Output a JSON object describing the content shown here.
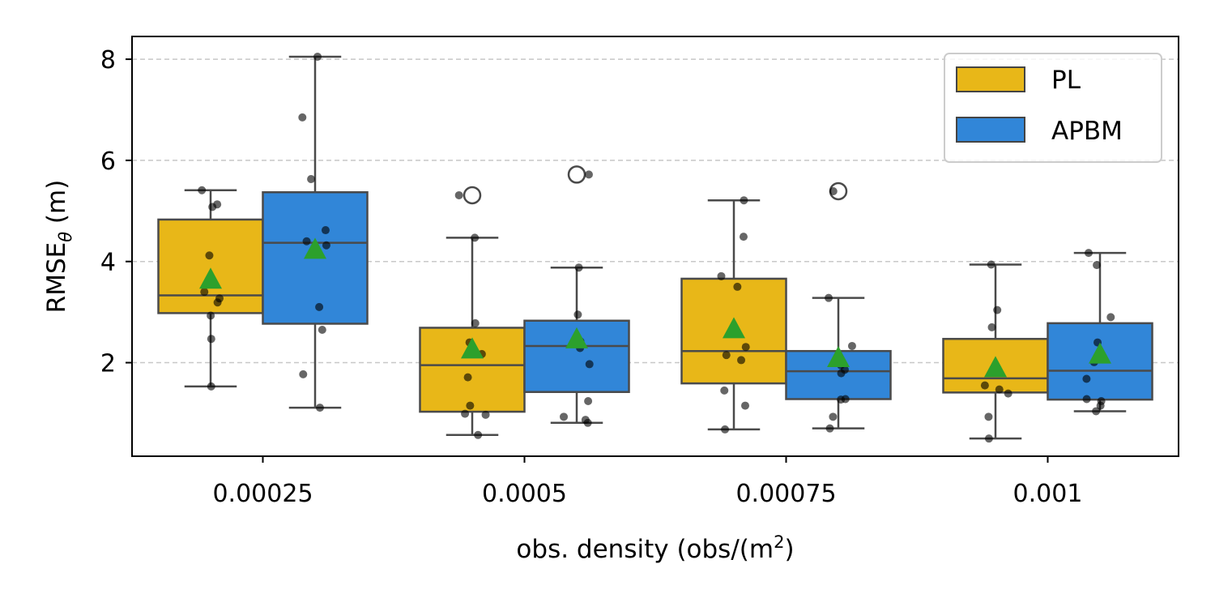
{
  "chart_data": {
    "type": "box",
    "categories": [
      "0.00025",
      "0.0005",
      "0.00075",
      "0.001"
    ],
    "xlabel": {
      "text": "obs. density (obs/(m",
      "sup": "2",
      "tail": ")"
    },
    "ylabel": {
      "text": "RMSE",
      "sub": "θ",
      "tail": " (m)"
    },
    "ylim": [
      0.15,
      8.45
    ],
    "yticks": [
      2,
      4,
      6,
      8
    ],
    "grid": "y-dashed",
    "legend_position": "top-right",
    "series": [
      {
        "name": "PL",
        "color": "#e8b718",
        "boxes": [
          {
            "whislo": 1.53,
            "q1": 2.98,
            "med": 3.33,
            "q3": 4.83,
            "whishi": 5.41,
            "mean": 3.63,
            "fliers": []
          },
          {
            "whislo": 0.57,
            "q1": 1.03,
            "med": 1.95,
            "q3": 2.69,
            "whishi": 4.47,
            "mean": 2.25,
            "fliers": [
              5.31
            ]
          },
          {
            "whislo": 0.68,
            "q1": 1.59,
            "med": 2.23,
            "q3": 3.66,
            "whishi": 5.21,
            "mean": 2.65,
            "fliers": []
          },
          {
            "whislo": 0.5,
            "q1": 1.41,
            "med": 1.69,
            "q3": 2.47,
            "whishi": 3.94,
            "mean": 1.88,
            "fliers": []
          }
        ],
        "points": [
          [
            5.41,
            5.13,
            5.08,
            4.12,
            3.4,
            3.27,
            3.19,
            2.93,
            2.47,
            1.53
          ],
          [
            5.31,
            4.47,
            2.78,
            2.4,
            2.17,
            1.71,
            1.15,
            0.99,
            0.97,
            0.57
          ],
          [
            5.21,
            4.49,
            3.71,
            3.5,
            2.31,
            2.15,
            2.05,
            1.45,
            1.15,
            0.68
          ],
          [
            3.94,
            3.04,
            2.7,
            1.82,
            1.8,
            1.55,
            1.47,
            1.39,
            0.93,
            0.5
          ]
        ]
      },
      {
        "name": "APBM",
        "color": "#3186d8",
        "boxes": [
          {
            "whislo": 1.11,
            "q1": 2.77,
            "med": 4.37,
            "q3": 5.37,
            "whishi": 8.05,
            "mean": 4.22,
            "fliers": []
          },
          {
            "whislo": 0.81,
            "q1": 1.42,
            "med": 2.33,
            "q3": 2.83,
            "whishi": 3.88,
            "mean": 2.45,
            "fliers": [
              5.72
            ]
          },
          {
            "whislo": 0.7,
            "q1": 1.28,
            "med": 1.83,
            "q3": 2.23,
            "whishi": 3.28,
            "mean": 2.08,
            "fliers": [
              5.39
            ]
          },
          {
            "whislo": 1.04,
            "q1": 1.27,
            "med": 1.84,
            "q3": 2.78,
            "whishi": 4.17,
            "mean": 2.15,
            "fliers": []
          }
        ],
        "points": [
          [
            8.05,
            6.85,
            5.63,
            4.62,
            4.4,
            4.32,
            3.1,
            2.65,
            1.77,
            1.11
          ],
          [
            5.72,
            3.88,
            2.95,
            2.42,
            2.29,
            1.97,
            1.24,
            0.93,
            0.87,
            0.81
          ],
          [
            5.39,
            3.28,
            2.33,
            1.95,
            1.86,
            1.79,
            1.28,
            1.27,
            0.93,
            0.7
          ],
          [
            4.17,
            3.93,
            2.9,
            2.4,
            2.01,
            1.68,
            1.28,
            1.24,
            1.15,
            1.04
          ]
        ]
      }
    ],
    "mean_marker_color": "#2ca02c"
  }
}
